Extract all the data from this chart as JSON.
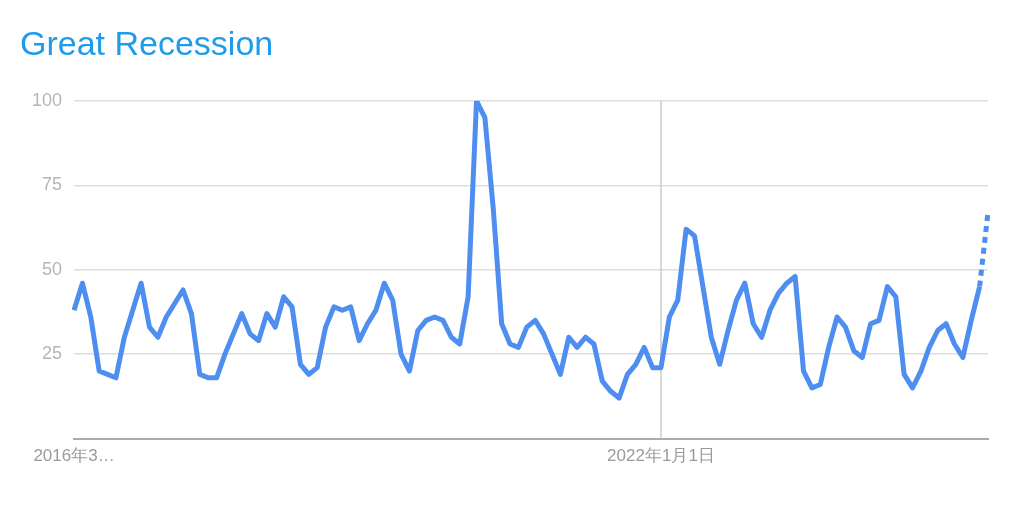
{
  "chart_data": {
    "type": "line",
    "title": "Great Recession",
    "categories": [
      "2016年3…",
      null,
      null,
      null,
      null,
      null,
      null,
      null,
      null,
      null,
      null,
      null,
      null,
      null,
      null,
      null,
      null,
      null,
      null,
      null,
      null,
      null,
      null,
      null,
      null,
      null,
      null,
      null,
      null,
      null,
      null,
      null,
      null,
      null,
      null,
      null,
      null,
      null,
      null,
      null,
      null,
      null,
      null,
      null,
      null,
      null,
      null,
      null,
      null,
      null,
      null,
      null,
      null,
      null,
      null,
      null,
      null,
      null,
      null,
      null,
      null,
      null,
      null,
      null,
      null,
      null,
      null,
      null,
      null,
      null,
      "2022年1月1日",
      null,
      null,
      null,
      null,
      null,
      null,
      null,
      null,
      null,
      null,
      null,
      null,
      null,
      null,
      null,
      null,
      null,
      null,
      null,
      null,
      null,
      null,
      null,
      null,
      null,
      null,
      null,
      null,
      null,
      null,
      null,
      null,
      null,
      null,
      null,
      null,
      null,
      null,
      null
    ],
    "series": [
      {
        "color": "#4d8ef0",
        "line_style": "solid",
        "values": [
          38,
          46,
          36,
          20,
          19,
          18,
          30,
          38,
          46,
          33,
          30,
          36,
          40,
          44,
          37,
          19,
          18,
          18,
          25,
          31,
          37,
          31,
          29,
          37,
          33,
          42,
          39,
          22,
          19,
          21,
          33,
          39,
          38,
          39,
          29,
          34,
          38,
          46,
          41,
          25,
          20,
          32,
          35,
          36,
          35,
          30,
          28,
          42,
          100,
          95,
          68,
          34,
          28,
          27,
          33,
          35,
          31,
          25,
          19,
          30,
          27,
          30,
          28,
          17,
          14,
          12,
          19,
          22,
          27,
          21,
          21,
          36,
          41,
          62,
          60,
          45,
          30,
          22,
          32,
          41,
          46,
          34,
          30,
          38,
          43,
          46,
          48,
          20,
          15,
          16,
          27,
          36,
          33,
          26,
          24,
          34,
          35,
          45,
          42,
          19,
          15,
          20,
          27,
          32,
          34,
          28,
          24,
          35,
          45,
          null
        ]
      },
      {
        "color": "#4d8ef0",
        "line_style": "dashed",
        "values": [
          null,
          null,
          null,
          null,
          null,
          null,
          null,
          null,
          null,
          null,
          null,
          null,
          null,
          null,
          null,
          null,
          null,
          null,
          null,
          null,
          null,
          null,
          null,
          null,
          null,
          null,
          null,
          null,
          null,
          null,
          null,
          null,
          null,
          null,
          null,
          null,
          null,
          null,
          null,
          null,
          null,
          null,
          null,
          null,
          null,
          null,
          null,
          null,
          null,
          null,
          null,
          null,
          null,
          null,
          null,
          null,
          null,
          null,
          null,
          null,
          null,
          null,
          null,
          null,
          null,
          null,
          null,
          null,
          null,
          null,
          null,
          null,
          null,
          null,
          null,
          null,
          null,
          null,
          null,
          null,
          null,
          null,
          null,
          null,
          null,
          null,
          null,
          null,
          null,
          null,
          null,
          null,
          null,
          null,
          null,
          null,
          null,
          null,
          null,
          null,
          null,
          null,
          null,
          null,
          null,
          null,
          null,
          null,
          45,
          67
        ]
      }
    ],
    "ylim": [
      0,
      100
    ],
    "yticks": [
      25,
      50,
      75,
      100
    ],
    "grid": "y",
    "legend": false,
    "marker": "none",
    "ref_lines": [
      {
        "axis": "x",
        "value": "2022年1月1日",
        "color": "#cccccc"
      }
    ]
  }
}
